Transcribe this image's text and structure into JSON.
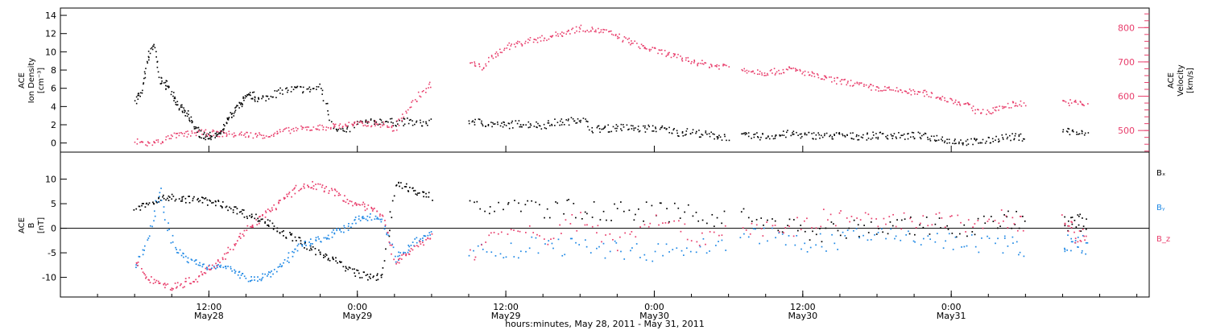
{
  "chart_data": [
    {
      "type": "scatter",
      "ylabel_left": [
        "ACE",
        "Ion Density",
        "[cm⁻³]"
      ],
      "ylabel_right": [
        "ACE",
        "Velocity",
        "[km/s]"
      ],
      "ylim_left": [
        -1,
        14.8
      ],
      "ylim_right": [
        437,
        857
      ],
      "yticks_left": [
        0,
        2,
        4,
        6,
        8,
        10,
        12,
        14
      ],
      "yticks_right": [
        500,
        600,
        700,
        800
      ],
      "colors": {
        "density": "#000000",
        "velocity": "#e83d6b"
      },
      "series": [
        {
          "name": "density",
          "x": [
            0,
            0.5,
            1,
            1.5,
            2,
            2.5,
            3,
            3.5,
            4,
            4.5,
            5,
            5.5,
            6,
            6.5,
            7,
            7.5,
            8,
            8.5,
            9,
            9.5,
            10,
            11,
            12,
            13,
            14,
            15,
            16,
            17,
            18,
            19,
            20,
            21,
            22,
            23,
            24
          ],
          "y": [
            4.8,
            5.5,
            9,
            11,
            7,
            6.5,
            5.5,
            4,
            3.5,
            2.5,
            1.5,
            0.8,
            0.8,
            0.9,
            1.2,
            2.5,
            3.5,
            4.3,
            5,
            5.3,
            4.8,
            5.3,
            5.8,
            6,
            5.9,
            6.2,
            2,
            1.2,
            2.3,
            2.3,
            2.5,
            2.3,
            2.4,
            2.2,
            2.3
          ]
        },
        {
          "name": "density_gap1",
          "x": [
            27,
            28,
            29,
            30,
            31,
            32,
            33,
            34,
            35,
            36,
            37,
            38,
            39,
            40,
            41,
            42,
            43,
            44,
            45,
            46,
            47,
            48
          ],
          "y": [
            2.5,
            2.3,
            2.1,
            2,
            2.2,
            2.1,
            2,
            2.3,
            2.4,
            2.8,
            1.6,
            1.6,
            1.8,
            1.7,
            1.6,
            1.7,
            1.5,
            1.2,
            1.3,
            1,
            0.8,
            0.7
          ]
        },
        {
          "name": "density_gap2",
          "x": [
            49,
            50,
            51,
            52,
            53,
            54,
            55,
            56,
            57,
            58,
            59,
            60,
            61,
            62,
            63,
            64,
            65,
            66,
            67,
            68,
            69,
            70,
            71,
            72
          ],
          "y": [
            0.8,
            0.8,
            0.8,
            0.9,
            1.1,
            0.9,
            0.9,
            0.8,
            0.9,
            0.8,
            0.8,
            0.9,
            0.9,
            0.8,
            0.9,
            0.7,
            0.6,
            0.3,
            0.2,
            0.2,
            0.3,
            0.7,
            0.7,
            0.7
          ]
        },
        {
          "name": "density_gap3",
          "x": [
            75,
            76,
            77
          ],
          "y": [
            1.5,
            1.2,
            1.0
          ]
        },
        {
          "name": "velocity",
          "x": [
            0,
            1,
            2,
            3,
            4,
            5,
            6,
            7,
            8,
            9,
            10,
            11,
            12,
            13,
            14,
            15,
            16,
            17,
            18,
            19,
            20,
            21,
            22,
            23,
            24
          ],
          "y": [
            470,
            463,
            470,
            485,
            490,
            495,
            495,
            492,
            490,
            490,
            488,
            488,
            500,
            505,
            508,
            510,
            514,
            518,
            520,
            522,
            520,
            505,
            560,
            605,
            640
          ]
        },
        {
          "name": "velocity_gap1",
          "x": [
            27,
            28,
            29,
            30,
            31,
            32,
            33,
            34,
            35,
            36,
            37,
            38,
            39,
            40,
            41,
            42,
            43,
            44,
            45,
            46,
            47,
            48
          ],
          "y": [
            700,
            685,
            720,
            745,
            755,
            765,
            770,
            780,
            790,
            800,
            795,
            790,
            775,
            760,
            745,
            735,
            725,
            712,
            705,
            695,
            690,
            690
          ]
        },
        {
          "name": "velocity_gap2",
          "x": [
            49,
            50,
            51,
            52,
            53,
            54,
            55,
            56,
            57,
            58,
            59,
            60,
            61,
            62,
            63,
            64,
            65,
            66,
            67,
            68,
            69,
            70,
            71,
            72
          ],
          "y": [
            680,
            675,
            670,
            675,
            680,
            672,
            660,
            652,
            645,
            640,
            630,
            625,
            620,
            617,
            612,
            610,
            598,
            590,
            580,
            560,
            555,
            570,
            580,
            580
          ]
        },
        {
          "name": "velocity_gap3",
          "x": [
            75,
            76,
            77
          ],
          "y": [
            585,
            582,
            578
          ]
        }
      ]
    },
    {
      "type": "scatter",
      "ylabel_left": [
        "ACE",
        "B",
        "[nT]"
      ],
      "ylim": [
        -14,
        15.5
      ],
      "yticks": [
        -10,
        -5,
        0,
        5,
        10
      ],
      "legend": [
        "Bₓ",
        "Bᵧ",
        "B_z"
      ],
      "legend_colors": [
        "#000000",
        "#1e88e5",
        "#e83d6b"
      ],
      "series": [
        {
          "name": "Bx",
          "x": [
            0,
            1,
            2,
            3,
            4,
            5,
            6,
            7,
            8,
            9,
            10,
            11,
            12,
            13,
            14,
            15,
            16,
            17,
            18,
            19,
            20,
            21,
            22,
            23,
            24
          ],
          "y": [
            4,
            5,
            6,
            6.5,
            6,
            6,
            5.5,
            5,
            4,
            3,
            2,
            1,
            -1,
            -2,
            -4,
            -5,
            -6,
            -8,
            -9,
            -10,
            -9.5,
            9,
            8.5,
            7,
            6.5
          ]
        },
        {
          "name": "By",
          "x": [
            0,
            1,
            2,
            3,
            4,
            5,
            6,
            7,
            8,
            9,
            10,
            11,
            12,
            13,
            14,
            15,
            16,
            17,
            18,
            19,
            20,
            21,
            22,
            23,
            24
          ],
          "y": [
            -8,
            -2,
            8,
            -3,
            -6,
            -7,
            -8,
            -7,
            -9,
            -10,
            -10,
            -9,
            -7,
            -4,
            -3,
            -2,
            -1,
            0,
            2,
            2.5,
            2,
            -6,
            -4,
            -2,
            -1
          ]
        },
        {
          "name": "Bz",
          "x": [
            0,
            1,
            2,
            3,
            4,
            5,
            6,
            7,
            8,
            9,
            10,
            11,
            12,
            13,
            14,
            15,
            16,
            17,
            18,
            19,
            20,
            21,
            22,
            23,
            24
          ],
          "y": [
            -7,
            -10,
            -11,
            -12,
            -11,
            -10,
            -8,
            -6,
            -3,
            0,
            2,
            4,
            6,
            8,
            9,
            8.5,
            7.5,
            6,
            5,
            4,
            3,
            -7,
            -5,
            -3,
            -1
          ]
        },
        {
          "name": "Bx_2",
          "x": [
            27,
            30,
            33,
            36,
            39,
            42,
            45,
            48
          ],
          "y": [
            4,
            5,
            4,
            4,
            3.5,
            3.5,
            3,
            2
          ]
        },
        {
          "name": "By_2",
          "x": [
            27,
            30,
            33,
            36,
            39,
            42,
            45,
            48
          ],
          "y": [
            -4,
            -5,
            -3,
            -4,
            -4,
            -5,
            -4,
            -3
          ]
        },
        {
          "name": "Bz_2",
          "x": [
            27,
            30,
            33,
            36,
            39,
            42,
            45,
            48
          ],
          "y": [
            -5,
            0,
            -2,
            2,
            -3,
            3,
            -2,
            0
          ]
        },
        {
          "name": "Bx_3",
          "x": [
            49,
            52,
            55,
            58,
            61,
            64,
            67,
            70,
            72
          ],
          "y": [
            3,
            1,
            -1,
            0,
            0,
            1,
            0,
            2,
            2
          ]
        },
        {
          "name": "By_3",
          "x": [
            49,
            52,
            55,
            58,
            61,
            64,
            67,
            70,
            72
          ],
          "y": [
            -1,
            -2,
            -3,
            -2,
            -1,
            -2,
            -3,
            -3,
            -4
          ]
        },
        {
          "name": "Bz_3",
          "x": [
            49,
            52,
            55,
            58,
            61,
            64,
            67,
            70,
            72
          ],
          "y": [
            1,
            -1,
            2,
            2,
            1,
            2,
            1,
            2,
            1
          ]
        },
        {
          "name": "Bx_4",
          "x": [
            75,
            76,
            77
          ],
          "y": [
            1,
            1,
            1
          ]
        },
        {
          "name": "By_4",
          "x": [
            75,
            76,
            77
          ],
          "y": [
            -3,
            -3,
            -3.5
          ]
        },
        {
          "name": "Bz_4",
          "x": [
            75,
            76,
            77
          ],
          "y": [
            1,
            -1,
            -2
          ]
        }
      ]
    }
  ],
  "x_axis": {
    "xlim_hours": [
      -6,
      82
    ],
    "tick_labels": [
      {
        "hours": 6,
        "time": "12:00",
        "day": "May28"
      },
      {
        "hours": 18,
        "time": "0:00",
        "day": "May29"
      },
      {
        "hours": 30,
        "time": "12:00",
        "day": "May29"
      },
      {
        "hours": 42,
        "time": "0:00",
        "day": "May30"
      },
      {
        "hours": 54,
        "time": "12:00",
        "day": "May30"
      },
      {
        "hours": 66,
        "time": "0:00",
        "day": "May31"
      }
    ],
    "title": "hours:minutes, May 28, 2011 - May 31, 2011"
  }
}
